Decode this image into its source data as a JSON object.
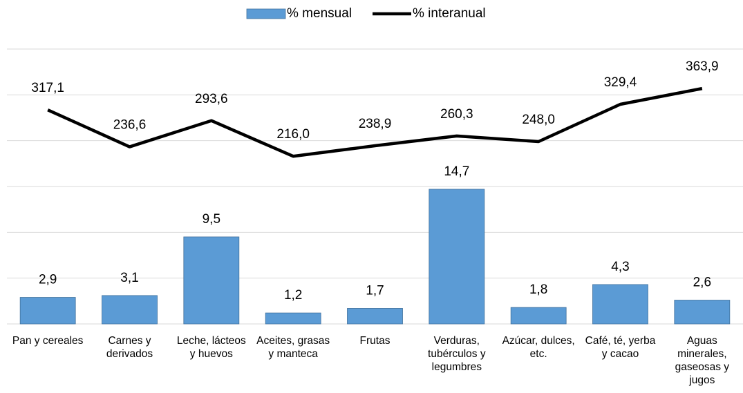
{
  "chart_data": {
    "type": "bar_line",
    "categories": [
      "Pan y cereales",
      "Carnes y derivados",
      "Leche, lácteos y huevos",
      "Aceites, grasas y manteca",
      "Frutas",
      "Verduras, tubérculos y legumbres",
      "Azúcar, dulces, etc.",
      "Café, té, yerba y cacao",
      "Aguas minerales, gaseosas y jugos"
    ],
    "series": [
      {
        "name": "% mensual",
        "type": "bar",
        "color": "#5b9bd5",
        "values": [
          2.9,
          3.1,
          9.5,
          1.2,
          1.7,
          14.7,
          1.8,
          4.3,
          2.6
        ],
        "value_labels": [
          "2,9",
          "3,1",
          "9,5",
          "1,2",
          "1,7",
          "14,7",
          "1,8",
          "4,3",
          "2,6"
        ]
      },
      {
        "name": "% interanual",
        "type": "line",
        "axis": "y2",
        "color": "#000000",
        "values": [
          317.1,
          236.6,
          293.6,
          216.0,
          238.9,
          260.3,
          248.0,
          329.4,
          363.9
        ],
        "value_labels": [
          "317,1",
          "236,6",
          "293,6",
          "216,0",
          "238,9",
          "260,3",
          "248,0",
          "329,4",
          "363,9"
        ]
      }
    ],
    "ylim": [
      0,
      30
    ],
    "yticks": [
      0,
      5,
      10,
      15,
      20,
      25,
      30
    ],
    "y2lim": [
      -150,
      450
    ],
    "y2ticks": [
      -150,
      -50,
      50,
      150,
      250,
      350,
      450
    ],
    "grid": true,
    "legend": "top"
  }
}
